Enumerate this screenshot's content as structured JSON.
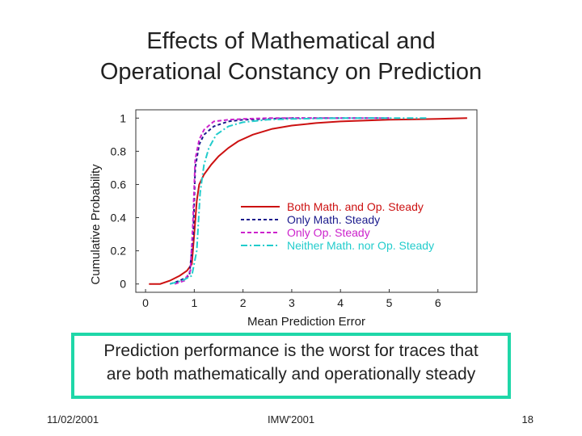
{
  "slide": {
    "title_line1": "Effects of Mathematical and",
    "title_line2": "Operational Constancy on Prediction",
    "note_line1": "Prediction performance is the worst for traces that",
    "note_line2": "are both mathematically and operationally steady",
    "footer_date": "11/02/2001",
    "footer_conference": "IMW'2001",
    "footer_page": "18",
    "note_border_color": "#1fd7a8"
  },
  "chart_data": {
    "type": "line",
    "title": "",
    "xlabel": "Mean Prediction Error",
    "ylabel": "Cumulative Probability",
    "xlim": [
      -0.2,
      6.8
    ],
    "ylim": [
      -0.05,
      1.05
    ],
    "xticks": [
      0,
      1,
      2,
      3,
      4,
      5,
      6
    ],
    "yticks": [
      0,
      0.2,
      0.4,
      0.6,
      0.8,
      1
    ],
    "ytick_labels": [
      "0",
      "0.2",
      "0.4",
      "0.6",
      "0.8",
      "1"
    ],
    "legend_position": "center-right",
    "grid": false,
    "series": [
      {
        "name": "Both Math. and Op. Steady",
        "color": "#cc1111",
        "dash": "solid",
        "x": [
          0.07,
          0.3,
          0.5,
          0.7,
          0.85,
          0.95,
          1.0,
          1.05,
          1.1,
          1.2,
          1.35,
          1.5,
          1.7,
          1.9,
          2.2,
          2.6,
          3.0,
          3.5,
          4.0,
          5.0,
          6.0,
          6.6
        ],
        "y": [
          0.0,
          0.0,
          0.02,
          0.05,
          0.08,
          0.12,
          0.3,
          0.5,
          0.6,
          0.66,
          0.72,
          0.77,
          0.82,
          0.86,
          0.9,
          0.935,
          0.955,
          0.97,
          0.98,
          0.99,
          0.995,
          1.0
        ]
      },
      {
        "name": "Only Math. Steady",
        "color": "#1a1a8c",
        "dash": "4,3",
        "x": [
          0.5,
          0.7,
          0.9,
          0.98,
          1.02,
          1.1,
          1.2,
          1.4,
          1.7,
          2.0,
          2.5,
          3.0,
          4.0,
          5.0
        ],
        "y": [
          0.0,
          0.02,
          0.05,
          0.3,
          0.7,
          0.84,
          0.9,
          0.95,
          0.98,
          0.99,
          0.995,
          1.0,
          1.0,
          1.0
        ]
      },
      {
        "name": "Only Op. Steady",
        "color": "#cc22cc",
        "dash": "5,3",
        "x": [
          0.6,
          0.8,
          0.92,
          0.97,
          1.02,
          1.1,
          1.2,
          1.4,
          1.7,
          2.0,
          2.5,
          3.0,
          4.0,
          5.0
        ],
        "y": [
          0.0,
          0.02,
          0.08,
          0.35,
          0.75,
          0.87,
          0.93,
          0.98,
          0.99,
          0.995,
          1.0,
          1.0,
          1.0,
          1.0
        ]
      },
      {
        "name": "Neither Math. nor Op. Steady",
        "color": "#22cccc",
        "dash": "8,3,2,3",
        "x": [
          0.5,
          0.75,
          0.95,
          1.05,
          1.12,
          1.2,
          1.3,
          1.45,
          1.7,
          2.0,
          2.5,
          3.0,
          4.0,
          5.0,
          5.8
        ],
        "y": [
          0.0,
          0.02,
          0.05,
          0.2,
          0.55,
          0.72,
          0.82,
          0.9,
          0.95,
          0.975,
          0.99,
          0.995,
          1.0,
          1.0,
          1.0
        ]
      }
    ]
  }
}
